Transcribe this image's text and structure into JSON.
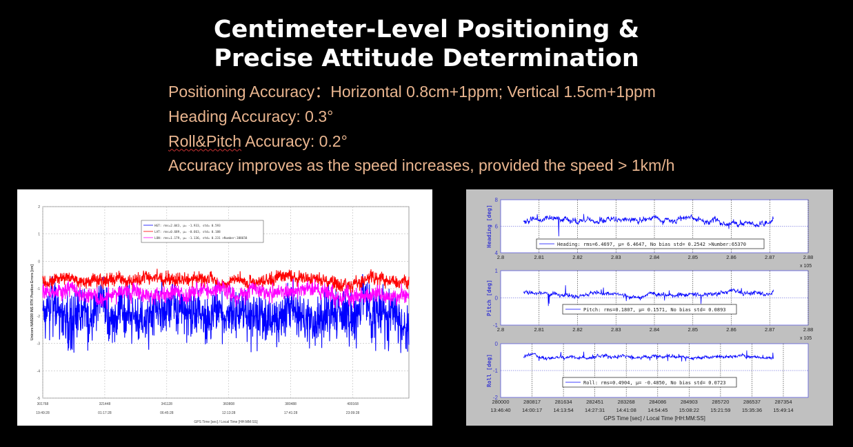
{
  "title": {
    "line1": "Centimeter-Level Positioning &",
    "line2": "Precise Attitude Determination"
  },
  "specs": [
    {
      "prefix": "",
      "underlined": "",
      "text": "Positioning Accuracy：Horizontal 0.8cm+1ppm; Vertical 1.5cm+1ppm"
    },
    {
      "prefix": "",
      "underlined": "",
      "text": "Heading Accuracy: 0.3°"
    },
    {
      "prefix": "",
      "underlined": "Roll&Pitch",
      "text": " Accuracy: 0.2°"
    },
    {
      "prefix": "",
      "underlined": "",
      "text": "Accuracy improves as the speed increases, provided the speed > 1km/h"
    }
  ],
  "chart_data": [
    {
      "type": "line",
      "title": "",
      "xlabel": "GPS Time [sec] / Local Time [HH:MM:SS]",
      "ylabel": "Unicore NAB200 INS RTK Position Errors [cm]",
      "xlim": [
        301768,
        418000
      ],
      "ylim": [
        -5,
        2
      ],
      "yticks": [
        2,
        1,
        0,
        -1,
        -2,
        -3,
        -4,
        -5
      ],
      "xticks": [
        301768,
        321448,
        341128,
        360808,
        380488,
        400168
      ],
      "xtick_times": [
        "19:49:28",
        "01:17:28",
        "06:45:28",
        "12:13:28",
        "17:41:28",
        "23:09:28"
      ],
      "grid": true,
      "legend_position": "top-center",
      "series": [
        {
          "name": "HGT",
          "legend": "HGT:  rms=2.043, μ= -1.933, std= 0.593",
          "color": "#0000ff",
          "mean": -1.933,
          "std": 0.593
        },
        {
          "name": "LAT",
          "legend": "LAT:  rms=0.689, μ= -0.663, std= 0.188",
          "color": "#ff0000",
          "mean": -0.663,
          "std": 0.188
        },
        {
          "name": "LON",
          "legend": "LON:  rms=1.179, μ= -1.136, std= 0.231 >Number:388658",
          "color": "#ff00ff",
          "mean": -1.136,
          "std": 0.231
        }
      ]
    },
    {
      "type": "line",
      "xlabel": "GPS Time [sec] / Local Time [HH:MM:SS]",
      "xlim": [
        280000,
        288000
      ],
      "x_exponent": "x 10^5",
      "xticks_sci": [
        "2.8",
        "2.81",
        "2.82",
        "2.83",
        "2.84",
        "2.85",
        "2.86",
        "2.87",
        "2.88"
      ],
      "xticks": [
        280000,
        280817,
        281634,
        282451,
        283268,
        284086,
        284903,
        285720,
        286537,
        287354
      ],
      "xtick_times": [
        "13:46:40",
        "14:00:17",
        "14:13:54",
        "14:27:31",
        "14:41:08",
        "14:54:45",
        "15:08:22",
        "15:21:59",
        "15:35:36",
        "15:49:14"
      ],
      "panels": [
        {
          "name": "Heading",
          "ylabel": "Heading [deg]",
          "ylim": [
            4,
            8
          ],
          "yticks": [
            "8",
            "6",
            "4"
          ],
          "legend": "Heading:  rms=6.4697, μ= 6.4647, No bias std= 0.2542 >Number:65370",
          "mean": 6.4647,
          "std": 0.2542,
          "color": "#0000ff"
        },
        {
          "name": "Pitch",
          "ylabel": "Pitch [deg]",
          "ylim": [
            -1,
            1
          ],
          "yticks": [
            "1",
            "0",
            "-1"
          ],
          "legend": "Pitch:  rms=0.1807, μ= 0.1571, No bias std= 0.0893",
          "mean": 0.1571,
          "std": 0.0893,
          "color": "#0000ff"
        },
        {
          "name": "Roll",
          "ylabel": "Roll [deg]",
          "ylim": [
            -2,
            0
          ],
          "yticks": [
            "0",
            "-1",
            "-2"
          ],
          "legend": "Roll:  rms=0.4904, μ= -0.4850, No bias std= 0.0723",
          "mean": -0.485,
          "std": 0.0723,
          "color": "#0000ff"
        }
      ]
    }
  ]
}
